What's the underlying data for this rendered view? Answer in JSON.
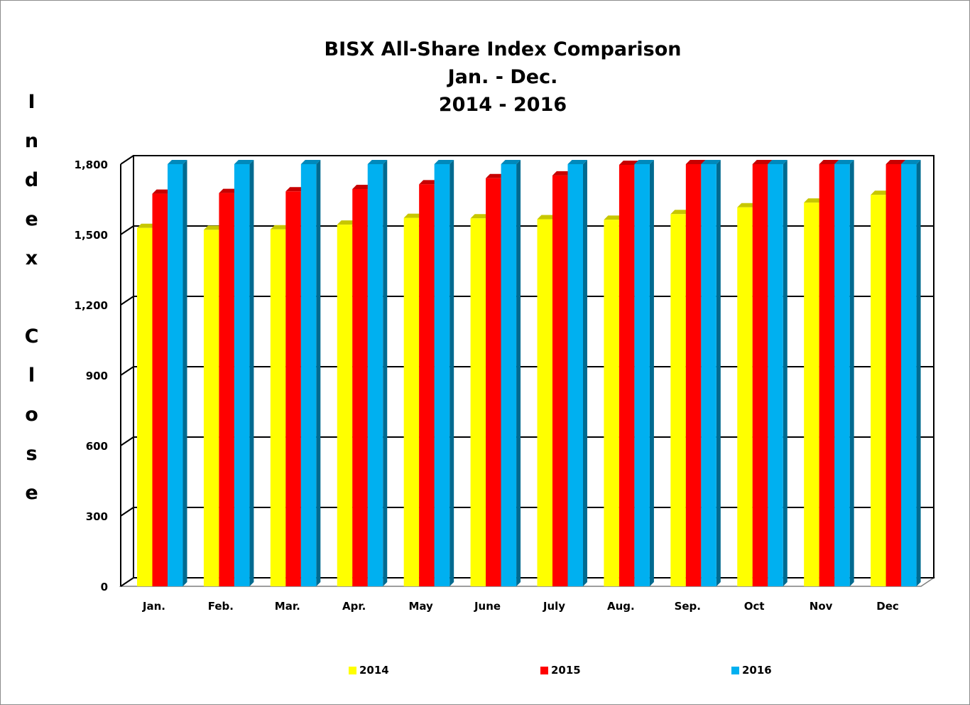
{
  "chart_data": {
    "type": "bar",
    "title": "BISX All-Share Index Comparison\nJan. - Dec.\n2014 - 2016",
    "ylabel": "Index Close",
    "xlabel": "",
    "categories": [
      "Jan.",
      "Feb.",
      "Mar.",
      "Apr.",
      "May",
      "June",
      "July",
      "Aug.",
      "Sep.",
      "Oct",
      "Nov",
      "Dec"
    ],
    "ylim": [
      0,
      1800
    ],
    "yticks": [
      0,
      300,
      600,
      900,
      1200,
      1500,
      1800
    ],
    "ytick_labels": [
      "0",
      "300",
      "600",
      "900",
      "1,200",
      "1,500",
      "1,800"
    ],
    "grid": true,
    "legend_position": "bottom",
    "style": "3d-clustered-column",
    "series": [
      {
        "name": "2014",
        "color": "#ffff00",
        "values": [
          1528,
          1520,
          1522,
          1542,
          1571,
          1569,
          1565,
          1563,
          1587,
          1616,
          1636,
          1669
        ]
      },
      {
        "name": "2015",
        "color": "#ff0000",
        "values": [
          1674,
          1677,
          1684,
          1694,
          1714,
          1740,
          1752,
          1797,
          1800,
          1800,
          1800,
          1800
        ]
      },
      {
        "name": "2016",
        "color": "#00b0f0",
        "values": [
          1800,
          1800,
          1800,
          1800,
          1800,
          1800,
          1800,
          1800,
          1800,
          1800,
          1800,
          1800
        ]
      }
    ]
  }
}
